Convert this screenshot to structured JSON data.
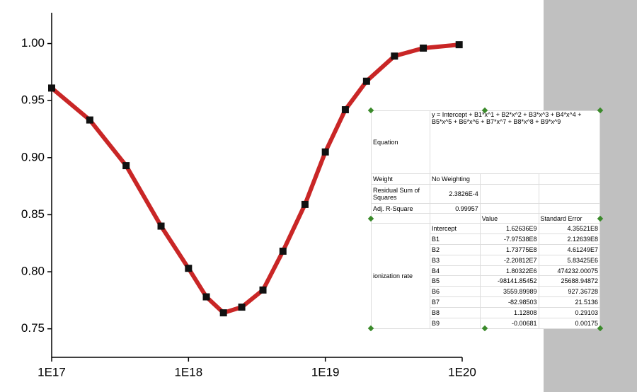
{
  "chart_data": {
    "type": "scatter",
    "xscale": "log",
    "x": [
      1e+17,
      1.9e+17,
      3.5e+17,
      6.3e+17,
      1e+18,
      1.35e+18,
      1.8e+18,
      2.45e+18,
      3.5e+18,
      4.9e+18,
      7.1e+18,
      1e+19,
      1.4e+19,
      2e+19,
      3.2e+19,
      5.2e+19,
      9.5e+19
    ],
    "series": [
      {
        "color": "#111111",
        "line_color": "#c00000",
        "values": [
          0.961,
          0.933,
          0.893,
          0.84,
          0.803,
          0.778,
          0.764,
          0.769,
          0.784,
          0.818,
          0.859,
          0.905,
          0.942,
          0.967,
          0.989,
          0.996,
          0.999
        ]
      }
    ],
    "xlim": [
      1e+17,
      1e+20
    ],
    "xticks": [
      {
        "value": 1e+17,
        "label": "1E17"
      },
      {
        "value": 1e+18,
        "label": "1E18"
      },
      {
        "value": 1e+19,
        "label": "1E19"
      },
      {
        "value": 1e+20,
        "label": "1E20"
      }
    ],
    "ylim": [
      0.725,
      1.027
    ],
    "yticks": [
      {
        "value": 0.75,
        "label": "0.75"
      },
      {
        "value": 0.8,
        "label": "0.80"
      },
      {
        "value": 0.85,
        "label": "0.85"
      },
      {
        "value": 0.9,
        "label": "0.90"
      },
      {
        "value": 0.95,
        "label": "0.95"
      },
      {
        "value": 1.0,
        "label": "1.00"
      }
    ]
  },
  "table": {
    "equation_label": "Equation",
    "equation": "y = Intercept + B1*x^1 + B2*x^2 + B3*x^3 + B4*x^4 + B5*x^5 + B6*x^6 + B7*x^7 + B8*x^8 + B9*x^9",
    "stats": [
      [
        "Weight",
        "No Weighting"
      ],
      [
        "Residual Sum of Squares",
        "2.3826E-4"
      ],
      [
        "Adj. R-Square",
        "0.99957"
      ]
    ],
    "header": [
      "Value",
      "Standard Error"
    ],
    "group": "ionization rate",
    "rows": [
      [
        "Intercept",
        "1.62636E9",
        "4.35521E8"
      ],
      [
        "B1",
        "-7.97538E8",
        "2.12639E8"
      ],
      [
        "B2",
        "1.73775E8",
        "4.61249E7"
      ],
      [
        "B3",
        "-2.20812E7",
        "5.83425E6"
      ],
      [
        "B4",
        "1.80322E6",
        "474232.00075"
      ],
      [
        "B5",
        "-98141.85452",
        "25688.94872"
      ],
      [
        "B6",
        "3559.89989",
        "927.36728"
      ],
      [
        "B7",
        "-82.98503",
        "21.5136"
      ],
      [
        "B8",
        "1.12808",
        "0.29103"
      ],
      [
        "B9",
        "-0.00681",
        "0.00175"
      ]
    ]
  }
}
